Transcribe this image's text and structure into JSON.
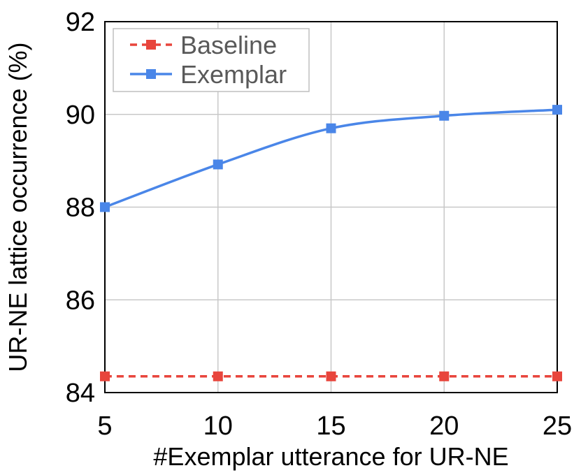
{
  "chart_data": {
    "type": "line",
    "title": "",
    "xlabel": "#Exemplar utterance for UR-NE",
    "ylabel": "UR-NE lattice occurrence (%)",
    "x": [
      5,
      10,
      15,
      20,
      25
    ],
    "xlim": [
      5,
      25
    ],
    "ylim": [
      84,
      92
    ],
    "xticks": [
      "5",
      "10",
      "15",
      "20",
      "25"
    ],
    "yticks": [
      "84",
      "86",
      "88",
      "90",
      "92"
    ],
    "grid": true,
    "legend_position": "top-left",
    "series": [
      {
        "name": "Baseline",
        "values": [
          84.35,
          84.35,
          84.35,
          84.35,
          84.35
        ],
        "color": "#e8453c",
        "line_style": "dashed",
        "marker": "square"
      },
      {
        "name": "Exemplar",
        "values": [
          88.0,
          88.92,
          89.7,
          89.97,
          90.1
        ],
        "color": "#4a86e8",
        "line_style": "solid",
        "marker": "square"
      }
    ]
  }
}
